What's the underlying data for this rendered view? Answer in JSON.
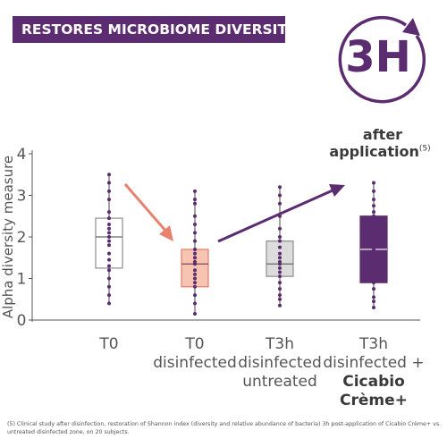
{
  "banner": {
    "title": "RESTORES MICROBIOME DIVERSITY"
  },
  "badge": {
    "time": "3H",
    "after": "after",
    "application": "application",
    "note_ref": "(5)"
  },
  "footnote": "(5) Clinical study after disinfection, restoration of Shannon index (diversity and relative abundance of bacteria) 3h post-application of Cicabio Crème+ vs. untreated disinfected zone, on 20 subjects.",
  "colors": {
    "purple": "#5b2c6f",
    "salmon_fill": "#f6c4b0",
    "salmon_stroke": "#e07c6a",
    "grey_fill": "#dcdcdc",
    "grey_stroke": "#8e8e8e",
    "white_stroke": "#8e8e8e",
    "arrow_down": "#e8826f",
    "arrow_up": "#5b2c6f"
  },
  "chart_data": {
    "type": "box",
    "ylabel": "Alpha diversity measure",
    "ylim": [
      0,
      4
    ],
    "yticks": [
      "0",
      "1",
      "2",
      "3",
      "4"
    ],
    "categories": [
      {
        "line1": "T0",
        "line2": "",
        "line3": "",
        "line4": ""
      },
      {
        "line1": "T0",
        "line2": "disinfected",
        "line3": "",
        "line4": ""
      },
      {
        "line1": "T3h",
        "line2": "disinfected",
        "line3": "untreated",
        "line4": ""
      },
      {
        "line1": "T3h",
        "line2": "disinfected +",
        "line3": "Cicabio",
        "line4": "Crème+"
      }
    ],
    "boxes": [
      {
        "min": 0.4,
        "q1": 1.25,
        "median": 2.0,
        "q3": 2.45,
        "max": 3.5,
        "style": "white",
        "points": [
          3.5,
          3.3,
          3.1,
          2.9,
          2.6,
          2.45,
          2.3,
          2.2,
          2.1,
          2.0,
          1.9,
          1.8,
          1.6,
          1.45,
          1.3,
          1.2,
          1.0,
          0.8,
          0.6,
          0.4
        ]
      },
      {
        "min": 0.15,
        "q1": 0.8,
        "median": 1.35,
        "q3": 1.7,
        "max": 3.1,
        "style": "salmon",
        "points": [
          3.1,
          2.9,
          2.8,
          2.5,
          2.3,
          2.1,
          1.9,
          1.7,
          1.6,
          1.5,
          1.4,
          1.35,
          1.2,
          1.1,
          1.0,
          0.9,
          0.8,
          0.6,
          0.4,
          0.15
        ]
      },
      {
        "min": 0.35,
        "q1": 1.05,
        "median": 1.35,
        "q3": 1.9,
        "max": 3.2,
        "style": "grey",
        "points": [
          3.2,
          3.0,
          2.8,
          2.5,
          2.2,
          2.0,
          1.9,
          1.75,
          1.6,
          1.5,
          1.4,
          1.35,
          1.25,
          1.15,
          1.05,
          0.9,
          0.75,
          0.6,
          0.5,
          0.35
        ]
      },
      {
        "min": 0.3,
        "q1": 0.9,
        "median": 1.7,
        "q3": 2.5,
        "max": 3.3,
        "style": "purple",
        "points": [
          3.3,
          3.1,
          2.9,
          2.75,
          2.6,
          2.5,
          2.3,
          2.1,
          1.9,
          1.8,
          1.7,
          1.6,
          1.4,
          1.2,
          1.05,
          0.9,
          0.75,
          0.55,
          0.45,
          0.3
        ]
      }
    ]
  }
}
